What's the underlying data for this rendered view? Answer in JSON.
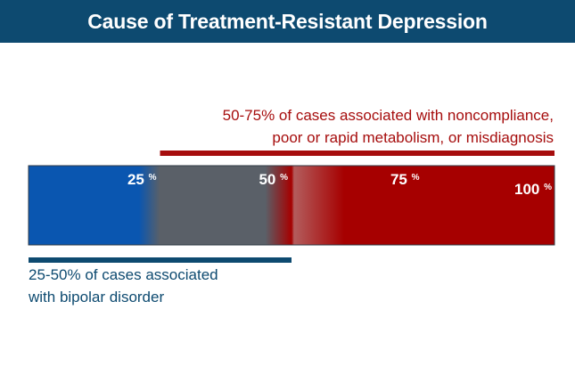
{
  "colors": {
    "title_bg": "#0d4a70",
    "blue": "#0a56b0",
    "gray": "#5a6068",
    "red": "#a60000",
    "navy": "#0d4a70",
    "text_red": "#a60d0d"
  },
  "chart_data": {
    "type": "bar",
    "title": "Cause of Treatment-Resistant Depression",
    "orientation": "horizontal",
    "xlim": [
      0,
      100
    ],
    "tick_unit": "%",
    "ticks": [
      {
        "value": 25,
        "label": "25"
      },
      {
        "value": 50,
        "label": "50"
      },
      {
        "value": 75,
        "label": "75"
      },
      {
        "value": 100,
        "label": "100"
      }
    ],
    "segments": [
      {
        "name": "blue",
        "from": 0,
        "to": 25,
        "color": "#0a56b0"
      },
      {
        "name": "gray",
        "from": 25,
        "to": 50,
        "color": "#5a6068"
      },
      {
        "name": "red",
        "from": 50,
        "to": 100,
        "color": "#a60000"
      }
    ],
    "annotations": [
      {
        "id": "top",
        "range": [
          25,
          100
        ],
        "color": "#a60d0d",
        "lines": [
          "50-75% of cases associated with noncompliance,",
          "poor or rapid metabolism, or misdiagnosis"
        ]
      },
      {
        "id": "bottom",
        "range": [
          0,
          50
        ],
        "color": "#0d4a70",
        "lines": [
          "25-50% of cases associated",
          "with bipolar disorder"
        ]
      }
    ]
  }
}
